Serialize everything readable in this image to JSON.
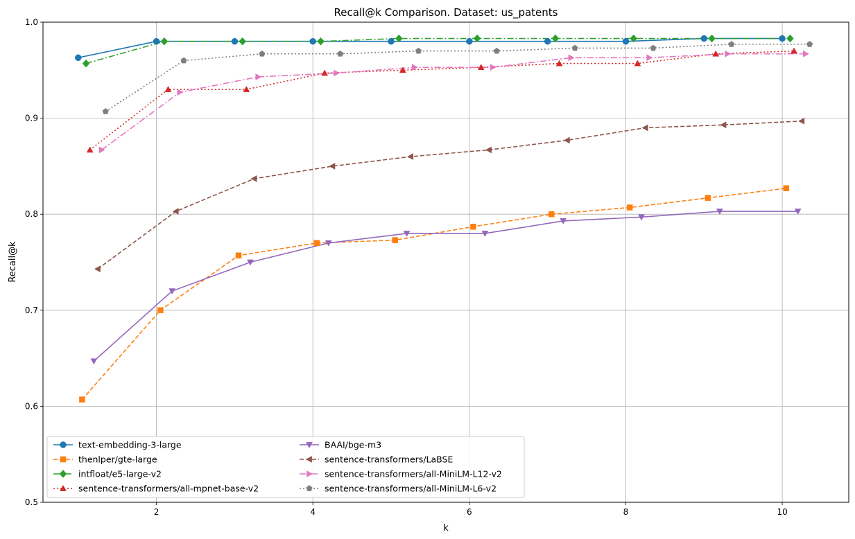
{
  "chart_data": {
    "type": "line",
    "title": "Recall@k Comparison. Dataset: us_patents",
    "xlabel": "k",
    "ylabel": "Recall@k",
    "xlim": [
      0.55,
      10.85
    ],
    "ylim": [
      0.5,
      1.0
    ],
    "xticks": [
      2,
      4,
      6,
      8,
      10
    ],
    "yticks": [
      0.5,
      0.6,
      0.7,
      0.8,
      0.9,
      1.0
    ],
    "grid": true,
    "legend_position": "lower-left",
    "series": [
      {
        "name": "text-embedding-3-large",
        "color": "#1f77b4",
        "dash": "solid",
        "marker": "circle",
        "x": [
          1.0,
          2.0,
          3.0,
          4.0,
          5.0,
          6.0,
          7.0,
          8.0,
          9.0,
          10.0
        ],
        "values": [
          0.963,
          0.98,
          0.98,
          0.98,
          0.98,
          0.98,
          0.98,
          0.98,
          0.983,
          0.983
        ]
      },
      {
        "name": "thenlper/gte-large",
        "color": "#ff7f0e",
        "dash": "dashed",
        "marker": "square",
        "x": [
          1.05,
          2.05,
          3.05,
          4.05,
          5.05,
          6.05,
          7.05,
          8.05,
          9.05,
          10.05
        ],
        "values": [
          0.607,
          0.7,
          0.757,
          0.77,
          0.773,
          0.787,
          0.8,
          0.807,
          0.817,
          0.827
        ]
      },
      {
        "name": "intfloat/e5-large-v2",
        "color": "#2ca02c",
        "dash": "dashdot",
        "marker": "diamond",
        "x": [
          1.1,
          2.1,
          3.1,
          4.1,
          5.1,
          6.1,
          7.1,
          8.1,
          9.1,
          10.1
        ],
        "values": [
          0.957,
          0.98,
          0.98,
          0.98,
          0.983,
          0.983,
          0.983,
          0.983,
          0.983,
          0.983
        ]
      },
      {
        "name": "sentence-transformers/all-mpnet-base-v2",
        "color": "#d62728",
        "dash": "dotted",
        "marker": "triangle-up",
        "x": [
          1.15,
          2.15,
          3.15,
          4.15,
          5.15,
          6.15,
          7.15,
          8.15,
          9.15,
          10.15
        ],
        "values": [
          0.867,
          0.93,
          0.93,
          0.947,
          0.95,
          0.953,
          0.957,
          0.957,
          0.967,
          0.97
        ]
      },
      {
        "name": "BAAI/bge-m3",
        "color": "#9467bd",
        "dash": "solid",
        "marker": "triangle-down",
        "x": [
          1.2,
          2.2,
          3.2,
          4.2,
          5.2,
          6.2,
          7.2,
          8.2,
          9.2,
          10.2
        ],
        "values": [
          0.647,
          0.72,
          0.75,
          0.77,
          0.78,
          0.78,
          0.793,
          0.797,
          0.803,
          0.803
        ]
      },
      {
        "name": "sentence-transformers/LaBSE",
        "color": "#8c564b",
        "dash": "dashed",
        "marker": "triangle-left",
        "x": [
          1.25,
          2.25,
          3.25,
          4.25,
          5.25,
          6.25,
          7.25,
          8.25,
          9.25,
          10.25
        ],
        "values": [
          0.743,
          0.803,
          0.837,
          0.85,
          0.86,
          0.867,
          0.877,
          0.89,
          0.893,
          0.897
        ]
      },
      {
        "name": "sentence-transformers/all-MiniLM-L12-v2",
        "color": "#e377c2",
        "dash": "dashdot",
        "marker": "triangle-right",
        "x": [
          1.3,
          2.3,
          3.3,
          4.3,
          5.3,
          6.3,
          7.3,
          8.3,
          9.3,
          10.3
        ],
        "values": [
          0.867,
          0.927,
          0.943,
          0.947,
          0.953,
          0.953,
          0.963,
          0.963,
          0.967,
          0.967
        ]
      },
      {
        "name": "sentence-transformers/all-MiniLM-L6-v2",
        "color": "#7f7f7f",
        "dash": "dotted",
        "marker": "pentagon",
        "x": [
          1.35,
          2.35,
          3.35,
          4.35,
          5.35,
          6.35,
          7.35,
          8.35,
          9.35,
          10.35
        ],
        "values": [
          0.907,
          0.96,
          0.967,
          0.967,
          0.97,
          0.97,
          0.973,
          0.973,
          0.977,
          0.977
        ]
      }
    ]
  }
}
